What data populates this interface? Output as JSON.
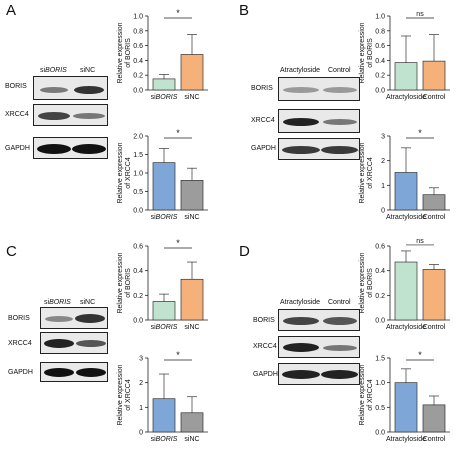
{
  "panels": [
    {
      "letter": "A",
      "lanes": [
        "siBORIS",
        "siNC"
      ],
      "rows": [
        "BORIS",
        "XRCC4",
        "GAPDH"
      ],
      "charts": [
        {
          "type": "bar",
          "categories": [
            "siBORIS",
            "siNC"
          ],
          "values": [
            0.15,
            0.48
          ],
          "errors": [
            0.06,
            0.27
          ],
          "ylim": [
            0,
            1.0
          ],
          "ticks": [
            "0.0",
            "0.2",
            "0.4",
            "0.6",
            "0.8",
            "1.0"
          ],
          "ylabel": "Relative expression",
          "ylabel2": "of BORIS",
          "sig": "*",
          "colors": [
            "#bfe3cf",
            "#f6b07a"
          ]
        },
        {
          "type": "bar",
          "categories": [
            "siBORIS",
            "siNC"
          ],
          "values": [
            1.28,
            0.8
          ],
          "errors": [
            0.38,
            0.33
          ],
          "ylim": [
            0,
            2.0
          ],
          "ticks": [
            "0.0",
            "0.5",
            "1.0",
            "1.5",
            "2.0"
          ],
          "ylabel": "Relative expression",
          "ylabel2": "of XRCC4",
          "sig": "*",
          "colors": [
            "#7ea7d8",
            "#9c9c9c"
          ]
        }
      ]
    },
    {
      "letter": "B",
      "lanes": [
        "Atractyloside",
        "Control"
      ],
      "rows": [
        "BORIS",
        "XRCC4",
        "GAPDH"
      ],
      "charts": [
        {
          "type": "bar",
          "categories": [
            "Atractyloside",
            "Control"
          ],
          "values": [
            0.37,
            0.39
          ],
          "errors": [
            0.36,
            0.36
          ],
          "ylim": [
            0,
            1.0
          ],
          "ticks": [
            "0.0",
            "0.2",
            "0.4",
            "0.6",
            "0.8",
            "1.0"
          ],
          "ylabel": "Relative expression",
          "ylabel2": "of BORIS",
          "sig": "ns",
          "colors": [
            "#bfe3cf",
            "#f6b07a"
          ]
        },
        {
          "type": "bar",
          "categories": [
            "Atractyloside",
            "Control"
          ],
          "values": [
            1.52,
            0.62
          ],
          "errors": [
            1.0,
            0.28
          ],
          "ylim": [
            0,
            3
          ],
          "ticks": [
            "0",
            "1",
            "2",
            "3"
          ],
          "ylabel": "Relative expression",
          "ylabel2": "of XRCC4",
          "sig": "*",
          "colors": [
            "#7ea7d8",
            "#9c9c9c"
          ]
        }
      ]
    },
    {
      "letter": "C",
      "lanes": [
        "siBORIS",
        "siNC"
      ],
      "rows": [
        "BORIS",
        "XRCC4",
        "GAPDH"
      ],
      "charts": [
        {
          "type": "bar",
          "categories": [
            "siBORIS",
            "siNC"
          ],
          "values": [
            0.15,
            0.33
          ],
          "errors": [
            0.06,
            0.14
          ],
          "ylim": [
            0,
            0.6
          ],
          "ticks": [
            "0.0",
            "0.2",
            "0.4",
            "0.6"
          ],
          "ylabel": "Relative expression",
          "ylabel2": "of BORIS",
          "sig": "*",
          "colors": [
            "#bfe3cf",
            "#f6b07a"
          ]
        },
        {
          "type": "bar",
          "categories": [
            "siBORIS",
            "siNC"
          ],
          "values": [
            1.35,
            0.78
          ],
          "errors": [
            1.0,
            0.65
          ],
          "ylim": [
            0,
            3
          ],
          "ticks": [
            "0",
            "1",
            "2",
            "3"
          ],
          "ylabel": "Relative expression",
          "ylabel2": "of XRCC4",
          "sig": "*",
          "colors": [
            "#7ea7d8",
            "#9c9c9c"
          ]
        }
      ]
    },
    {
      "letter": "D",
      "lanes": [
        "Atractyloside",
        "Control"
      ],
      "rows": [
        "BORIS",
        "XRCC4",
        "GAPDH"
      ],
      "charts": [
        {
          "type": "bar",
          "categories": [
            "Atractyloside",
            "Control"
          ],
          "values": [
            0.47,
            0.41
          ],
          "errors": [
            0.09,
            0.04
          ],
          "ylim": [
            0,
            0.6
          ],
          "ticks": [
            "0.0",
            "0.2",
            "0.4",
            "0.6"
          ],
          "ylabel": "Relative expression",
          "ylabel2": "of BORIS",
          "sig": "ns",
          "colors": [
            "#bfe3cf",
            "#f6b07a"
          ]
        },
        {
          "type": "bar",
          "categories": [
            "Atractyloside",
            "Control"
          ],
          "values": [
            1.0,
            0.55
          ],
          "errors": [
            0.28,
            0.18
          ],
          "ylim": [
            0,
            1.5
          ],
          "ticks": [
            "0.0",
            "0.5",
            "1.0",
            "1.5"
          ],
          "ylabel": "Relative expression",
          "ylabel2": "of XRCC4",
          "sig": "*",
          "colors": [
            "#7ea7d8",
            "#9c9c9c"
          ]
        }
      ]
    }
  ]
}
